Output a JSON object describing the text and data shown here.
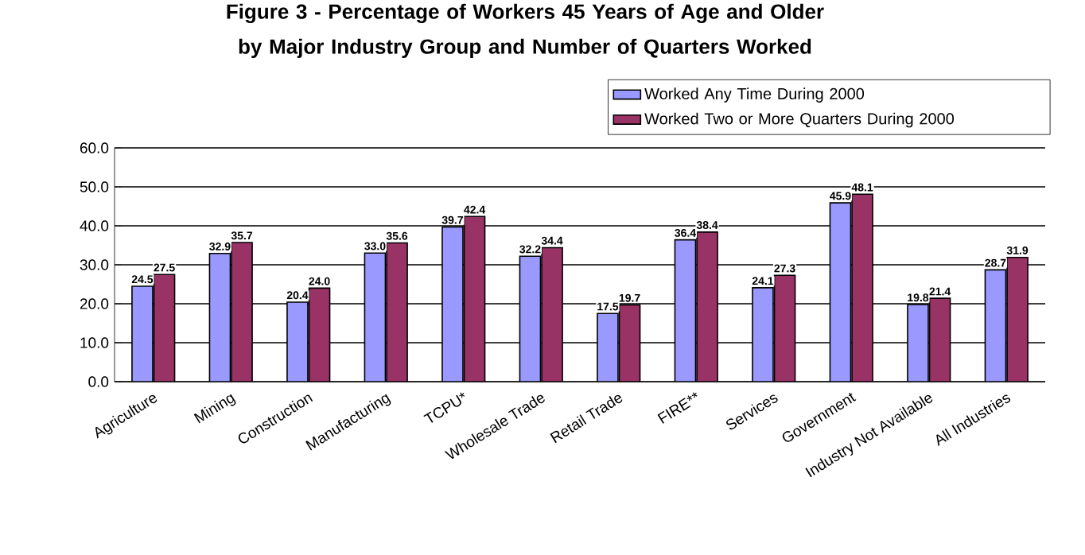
{
  "chart_data": {
    "type": "bar",
    "title": "Figure 3 - Percentage of Workers 45 Years of Age and Older by Major Industry Group and Number of Quarters Worked",
    "categories": [
      "Agriculture",
      "Mining",
      "Construction",
      "Manufacturing",
      "TCPU*",
      "Wholesale Trade",
      "Retail Trade",
      "FIRE**",
      "Services",
      "Government",
      "Industry Not Available",
      "All Industries"
    ],
    "series": [
      {
        "name": "Worked Any Time During 2000",
        "color": "#9999ff",
        "values": [
          24.5,
          32.9,
          20.4,
          33.0,
          39.7,
          32.2,
          17.5,
          36.4,
          24.1,
          45.9,
          19.8,
          28.7
        ],
        "value_labels": [
          "24.5",
          "32.9",
          "20.4",
          "33.0",
          "39.7",
          "32.2",
          "17.5",
          "36.4",
          "24.1",
          "45.9",
          "19.8",
          "28.7"
        ]
      },
      {
        "name": "Worked Two or More Quarters During 2000",
        "color": "#993366",
        "values": [
          27.5,
          35.7,
          24.0,
          35.6,
          42.4,
          34.4,
          19.7,
          38.4,
          27.3,
          48.1,
          21.4,
          31.9
        ],
        "value_labels": [
          "27.5",
          "35.7",
          "24.0",
          "35.6",
          "42.4",
          "34.4",
          "19.7",
          "38.4",
          "27.3",
          "48.1",
          "21.4",
          "31.9"
        ]
      }
    ],
    "ylim": [
      0,
      60
    ],
    "yticks": [
      {
        "value": 0,
        "label": "0.0"
      },
      {
        "value": 10,
        "label": "10.0"
      },
      {
        "value": 20,
        "label": "20.0"
      },
      {
        "value": 30,
        "label": "30.0"
      },
      {
        "value": 40,
        "label": "40.0"
      },
      {
        "value": 50,
        "label": "50.0"
      },
      {
        "value": 60,
        "label": "60.0"
      }
    ],
    "grid": "y",
    "legend": "top right"
  }
}
